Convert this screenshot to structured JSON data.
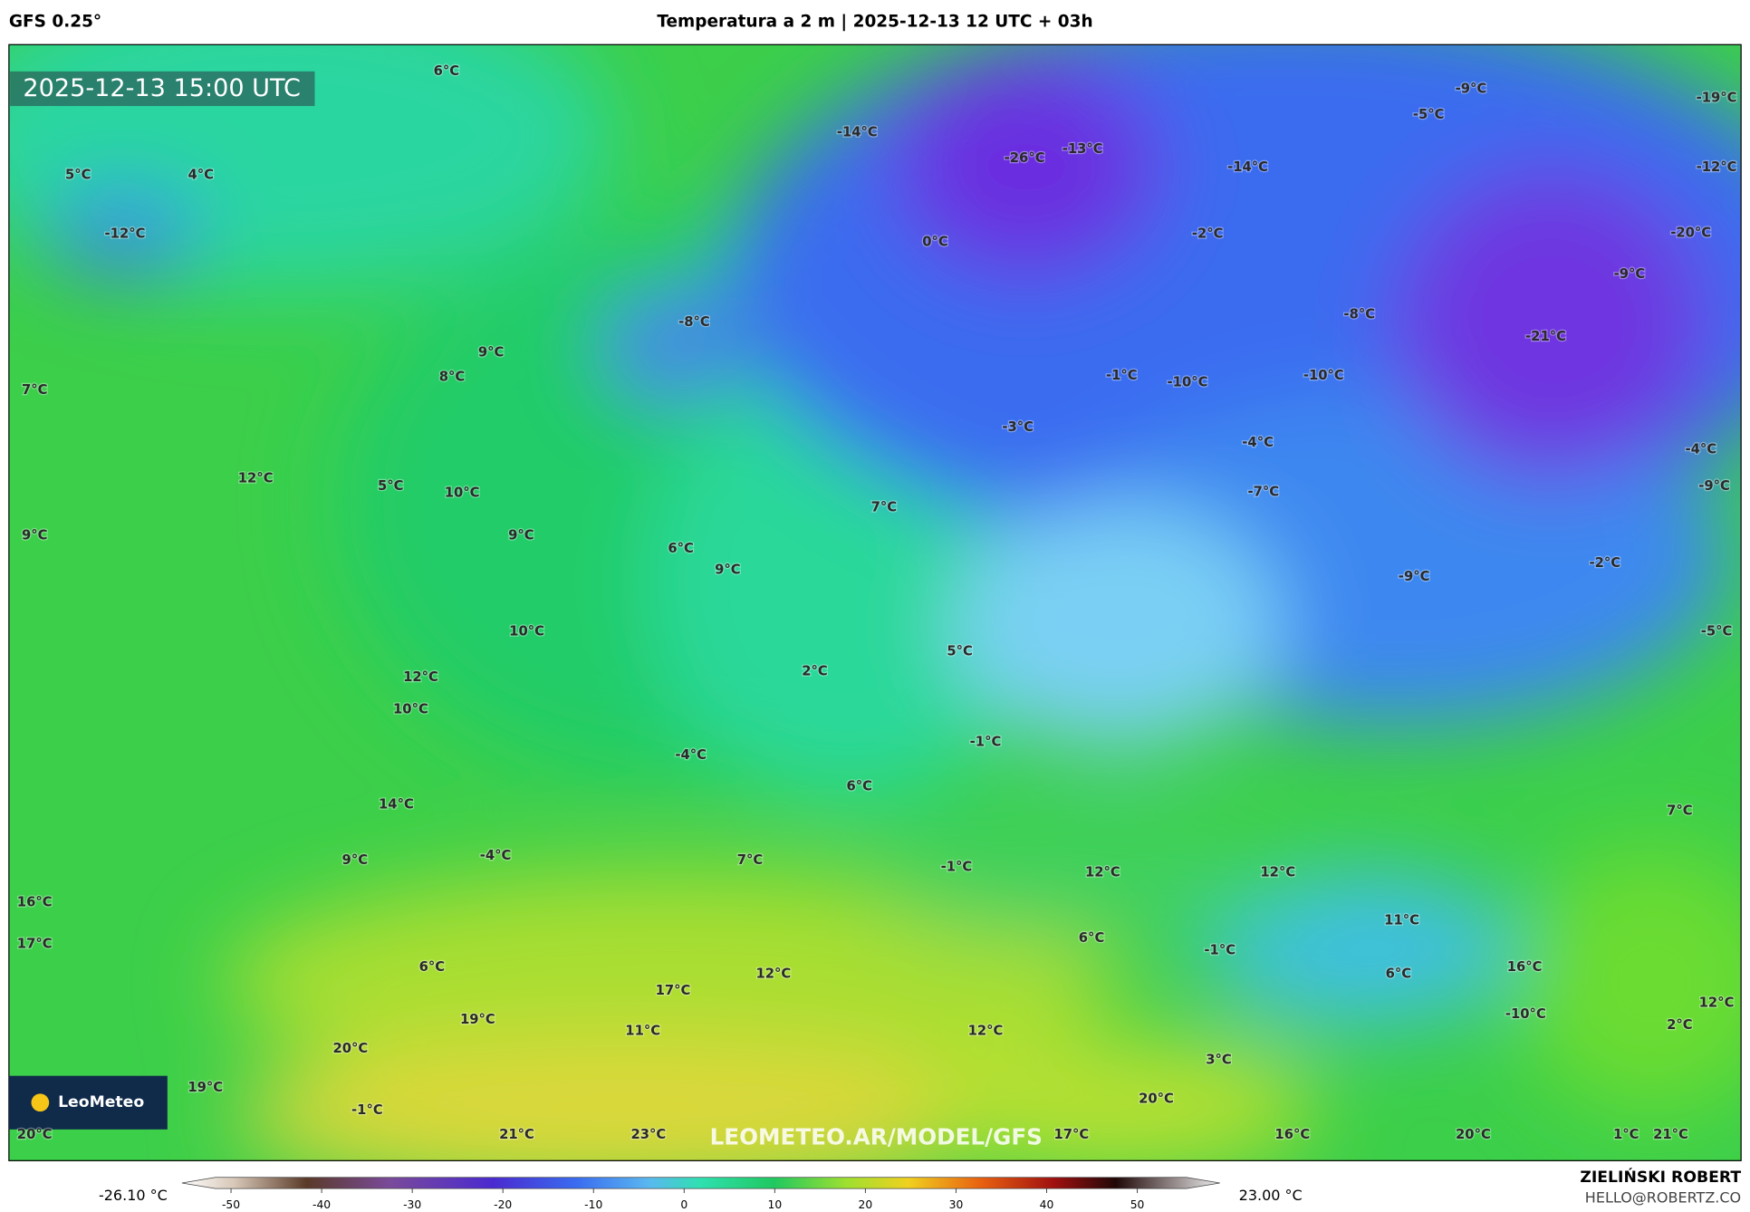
{
  "header": {
    "model": "GFS 0.25°",
    "title": "Temperatura a 2 m | 2025-12-13 12 UTC + 03h"
  },
  "timestamp": "2025-12-13 15:00 UTC",
  "labels": [
    "6°C",
    "5°C",
    "4°C",
    "-12°C",
    "-14°C",
    "-26°C",
    "-13°C",
    "-14°C",
    "-9°C",
    "-5°C",
    "-19°C",
    "-12°C",
    "0°C",
    "-2°C",
    "-20°C",
    "-9°C",
    "-8°C",
    "-8°C",
    "-21°C",
    "9°C",
    "8°C",
    "7°C",
    "-1°C",
    "-10°C",
    "-10°C",
    "-3°C",
    "-4°C",
    "-4°C",
    "12°C",
    "5°C",
    "10°C",
    "-7°C",
    "-9°C",
    "9°C",
    "9°C",
    "7°C",
    "6°C",
    "9°C",
    "-2°C",
    "-9°C",
    "10°C",
    "-5°C",
    "5°C",
    "12°C",
    "2°C",
    "10°C",
    "-1°C",
    "-4°C",
    "14°C",
    "6°C",
    "7°C",
    "9°C",
    "-4°C",
    "7°C",
    "-1°C",
    "12°C",
    "12°C",
    "16°C",
    "11°C",
    "17°C",
    "6°C",
    "-1°C",
    "6°C",
    "6°C",
    "16°C",
    "12°C",
    "17°C",
    "19°C",
    "-10°C",
    "2°C",
    "12°C",
    "11°C",
    "12°C",
    "20°C",
    "3°C",
    "19°C",
    "20°C",
    "-1°C",
    "20°C",
    "21°C",
    "23°C",
    "17°C",
    "16°C",
    "20°C",
    "1°C",
    "21°C"
  ],
  "watermark": "LEOMETEO.AR/MODEL/GFS",
  "logo": "LeoMeteo",
  "colorbar": {
    "min_label": "-26.10 °C",
    "max_label": "23.00 °C",
    "ticks": [
      -50,
      -40,
      -30,
      -20,
      -10,
      0,
      10,
      20,
      30,
      40,
      50
    ]
  },
  "author": {
    "name": "ZIELIŃSKI ROBERT",
    "email": "HELLO@ROBERTZ.CO"
  }
}
